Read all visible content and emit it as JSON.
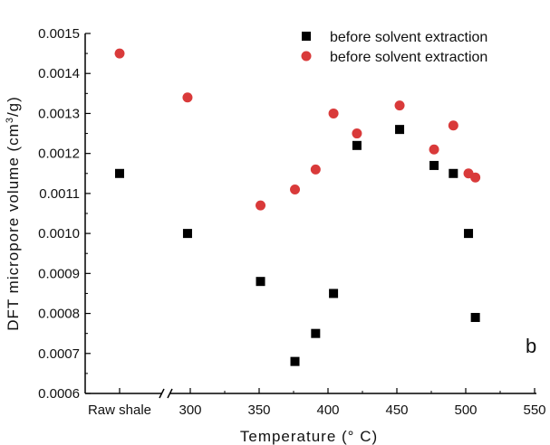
{
  "chart_data": {
    "type": "scatter",
    "xlabel": "Temperature (° C)",
    "ylabel_main": "DFT micropore volume (cm",
    "ylabel_sup": "3",
    "ylabel_tail": "/g)",
    "panel_label": "b",
    "ylim": [
      0.0006,
      0.0015
    ],
    "xlim": [
      275,
      550
    ],
    "y_ticks": [
      "0.0006",
      "0.0007",
      "0.0008",
      "0.0009",
      "0.0010",
      "0.0011",
      "0.0012",
      "0.0013",
      "0.0014",
      "0.0015"
    ],
    "x_ticks": [
      "300",
      "350",
      "400",
      "450",
      "500",
      "550"
    ],
    "x_category_tick": "Raw shale",
    "axis_break": true,
    "legend_position": "top-right",
    "series": [
      {
        "name": "before solvent extraction",
        "marker": "square",
        "color": "#000000",
        "raw_shale": 0.00115,
        "x": [
          298,
          351,
          376,
          391,
          404,
          421,
          452,
          477,
          491,
          502,
          507
        ],
        "y": [
          0.001,
          0.00088,
          0.00068,
          0.00075,
          0.00085,
          0.00122,
          0.00126,
          0.00117,
          0.00115,
          0.001,
          0.00079
        ]
      },
      {
        "name": "before solvent extraction",
        "marker": "circle",
        "color": "#d93a3a",
        "raw_shale": 0.00145,
        "x": [
          298,
          351,
          376,
          391,
          404,
          421,
          452,
          477,
          491,
          502,
          507
        ],
        "y": [
          0.00134,
          0.00107,
          0.00111,
          0.00116,
          0.0013,
          0.00125,
          0.00132,
          0.00121,
          0.00127,
          0.00115,
          0.00114
        ]
      }
    ]
  }
}
